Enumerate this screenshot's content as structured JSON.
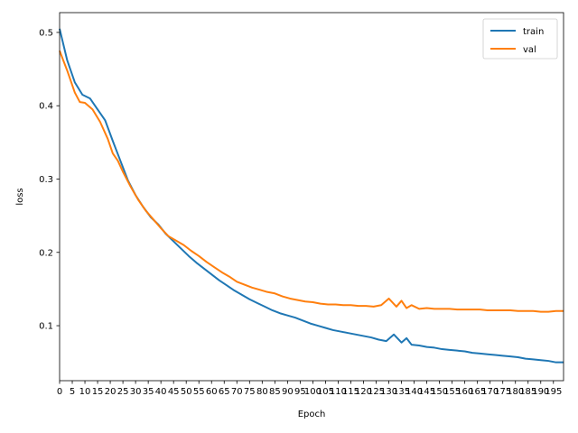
{
  "chart_data": {
    "type": "line",
    "title": "",
    "xlabel": "Epoch",
    "ylabel": "loss",
    "xlim": [
      0,
      199
    ],
    "ylim": [
      0.025,
      0.527
    ],
    "grid": false,
    "legend_position": "top-right",
    "x_ticks": [
      0,
      5,
      10,
      15,
      20,
      25,
      30,
      35,
      40,
      45,
      50,
      55,
      60,
      65,
      70,
      75,
      80,
      85,
      90,
      95,
      100,
      105,
      110,
      115,
      120,
      125,
      130,
      135,
      140,
      145,
      150,
      155,
      160,
      165,
      170,
      175,
      180,
      185,
      190,
      195
    ],
    "y_ticks": [
      0.1,
      0.2,
      0.3,
      0.4,
      0.5
    ],
    "series": [
      {
        "name": "train",
        "color": "#1f77b4",
        "points": [
          [
            0,
            0.505
          ],
          [
            3,
            0.462
          ],
          [
            6,
            0.432
          ],
          [
            9,
            0.415
          ],
          [
            12,
            0.41
          ],
          [
            15,
            0.395
          ],
          [
            18,
            0.38
          ],
          [
            21,
            0.352
          ],
          [
            24,
            0.325
          ],
          [
            27,
            0.298
          ],
          [
            30,
            0.278
          ],
          [
            33,
            0.262
          ],
          [
            36,
            0.248
          ],
          [
            39,
            0.238
          ],
          [
            42,
            0.225
          ],
          [
            45,
            0.215
          ],
          [
            48,
            0.205
          ],
          [
            51,
            0.195
          ],
          [
            54,
            0.186
          ],
          [
            57,
            0.178
          ],
          [
            60,
            0.17
          ],
          [
            63,
            0.162
          ],
          [
            66,
            0.155
          ],
          [
            69,
            0.148
          ],
          [
            72,
            0.142
          ],
          [
            75,
            0.136
          ],
          [
            78,
            0.131
          ],
          [
            81,
            0.126
          ],
          [
            84,
            0.121
          ],
          [
            87,
            0.117
          ],
          [
            90,
            0.114
          ],
          [
            93,
            0.111
          ],
          [
            96,
            0.107
          ],
          [
            99,
            0.103
          ],
          [
            102,
            0.1
          ],
          [
            105,
            0.097
          ],
          [
            108,
            0.094
          ],
          [
            111,
            0.092
          ],
          [
            114,
            0.09
          ],
          [
            117,
            0.088
          ],
          [
            120,
            0.086
          ],
          [
            123,
            0.084
          ],
          [
            126,
            0.081
          ],
          [
            129,
            0.079
          ],
          [
            132,
            0.088
          ],
          [
            135,
            0.077
          ],
          [
            137,
            0.083
          ],
          [
            139,
            0.074
          ],
          [
            142,
            0.073
          ],
          [
            145,
            0.071
          ],
          [
            148,
            0.07
          ],
          [
            151,
            0.068
          ],
          [
            154,
            0.067
          ],
          [
            157,
            0.066
          ],
          [
            160,
            0.065
          ],
          [
            163,
            0.063
          ],
          [
            166,
            0.062
          ],
          [
            169,
            0.061
          ],
          [
            172,
            0.06
          ],
          [
            175,
            0.059
          ],
          [
            178,
            0.058
          ],
          [
            181,
            0.057
          ],
          [
            184,
            0.055
          ],
          [
            187,
            0.054
          ],
          [
            190,
            0.053
          ],
          [
            193,
            0.052
          ],
          [
            196,
            0.05
          ],
          [
            199,
            0.05
          ]
        ]
      },
      {
        "name": "val",
        "color": "#ff7f0e",
        "points": [
          [
            0,
            0.475
          ],
          [
            3,
            0.448
          ],
          [
            6,
            0.418
          ],
          [
            8,
            0.405
          ],
          [
            10,
            0.404
          ],
          [
            13,
            0.395
          ],
          [
            16,
            0.378
          ],
          [
            19,
            0.355
          ],
          [
            21,
            0.335
          ],
          [
            23,
            0.325
          ],
          [
            25,
            0.31
          ],
          [
            28,
            0.29
          ],
          [
            31,
            0.272
          ],
          [
            34,
            0.257
          ],
          [
            37,
            0.245
          ],
          [
            40,
            0.233
          ],
          [
            43,
            0.222
          ],
          [
            46,
            0.216
          ],
          [
            49,
            0.21
          ],
          [
            52,
            0.202
          ],
          [
            55,
            0.195
          ],
          [
            58,
            0.187
          ],
          [
            61,
            0.18
          ],
          [
            64,
            0.173
          ],
          [
            67,
            0.167
          ],
          [
            70,
            0.16
          ],
          [
            73,
            0.156
          ],
          [
            76,
            0.152
          ],
          [
            79,
            0.149
          ],
          [
            82,
            0.146
          ],
          [
            85,
            0.144
          ],
          [
            88,
            0.14
          ],
          [
            91,
            0.137
          ],
          [
            94,
            0.135
          ],
          [
            97,
            0.133
          ],
          [
            100,
            0.132
          ],
          [
            103,
            0.13
          ],
          [
            106,
            0.129
          ],
          [
            109,
            0.129
          ],
          [
            112,
            0.128
          ],
          [
            115,
            0.128
          ],
          [
            118,
            0.127
          ],
          [
            121,
            0.127
          ],
          [
            124,
            0.126
          ],
          [
            127,
            0.128
          ],
          [
            130,
            0.137
          ],
          [
            133,
            0.126
          ],
          [
            135,
            0.134
          ],
          [
            137,
            0.124
          ],
          [
            139,
            0.128
          ],
          [
            142,
            0.123
          ],
          [
            145,
            0.124
          ],
          [
            148,
            0.123
          ],
          [
            151,
            0.123
          ],
          [
            154,
            0.123
          ],
          [
            157,
            0.122
          ],
          [
            160,
            0.122
          ],
          [
            163,
            0.122
          ],
          [
            166,
            0.122
          ],
          [
            169,
            0.121
          ],
          [
            172,
            0.121
          ],
          [
            175,
            0.121
          ],
          [
            178,
            0.121
          ],
          [
            181,
            0.12
          ],
          [
            184,
            0.12
          ],
          [
            187,
            0.12
          ],
          [
            190,
            0.119
          ],
          [
            193,
            0.119
          ],
          [
            196,
            0.12
          ],
          [
            199,
            0.12
          ]
        ]
      }
    ]
  }
}
